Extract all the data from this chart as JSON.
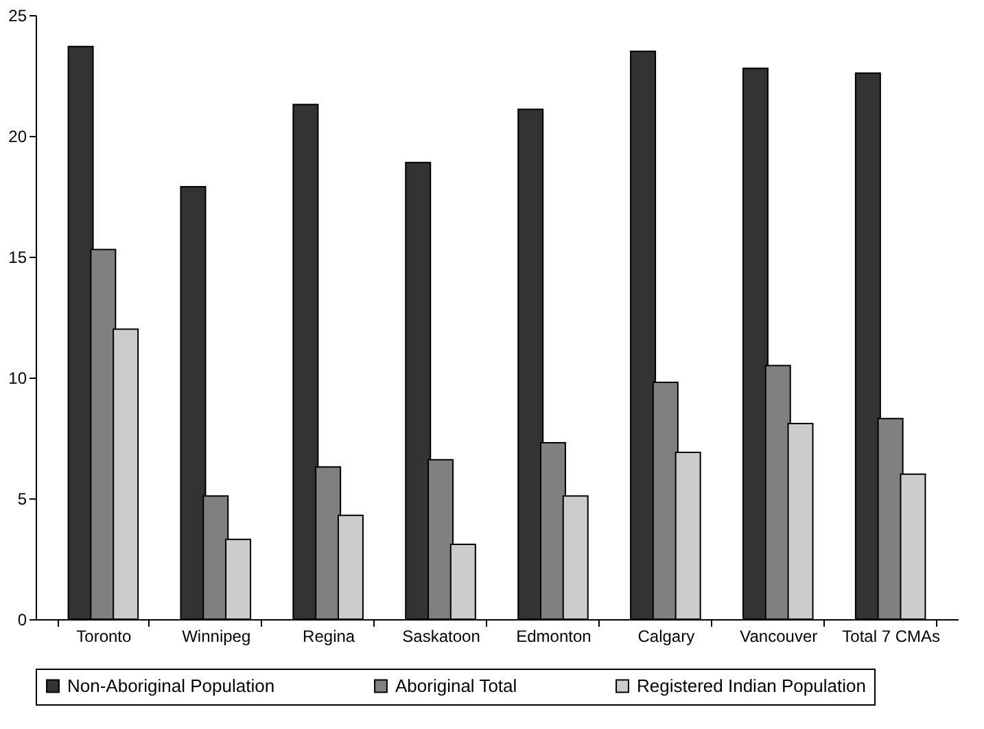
{
  "chart_data": {
    "type": "bar",
    "categories": [
      "Toronto",
      "Winnipeg",
      "Regina",
      "Saskatoon",
      "Edmonton",
      "Calgary",
      "Vancouver",
      "Total 7 CMAs"
    ],
    "series": [
      {
        "name": "Non-Aboriginal Population",
        "color": "#333333",
        "values": [
          23.7,
          17.9,
          21.3,
          18.9,
          21.1,
          23.5,
          22.8,
          22.6
        ]
      },
      {
        "name": "Aboriginal Total",
        "color": "#808080",
        "values": [
          15.3,
          5.1,
          6.3,
          6.6,
          7.3,
          9.8,
          10.5,
          8.3
        ]
      },
      {
        "name": "Registered Indian Population",
        "color": "#cccccc",
        "values": [
          12.0,
          3.3,
          4.3,
          3.1,
          5.1,
          6.9,
          8.1,
          6.0
        ]
      }
    ],
    "ylim": [
      0,
      25
    ],
    "yticks": [
      0,
      5,
      10,
      15,
      20,
      25
    ],
    "grid": false,
    "legend": "bottom"
  }
}
